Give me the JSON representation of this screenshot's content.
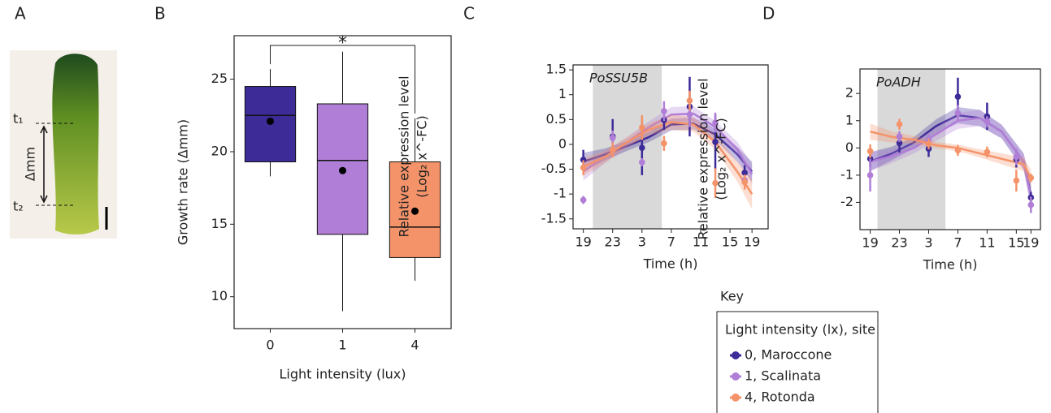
{
  "panel_a": {
    "panel": "A",
    "labels": [
      "t₁",
      "t₂",
      "Δmm"
    ]
  },
  "legend": {
    "heading": "Key",
    "title": "Light intensity (lx), site"
  },
  "chart_data": [
    {
      "type": "box",
      "panel": "B",
      "xlabel": "Light intensity (lux)",
      "ylabel": "Growth rate (Δmm)",
      "categories": [
        "0",
        "1",
        "4"
      ],
      "colors": [
        "#3d2b98",
        "#b07ed6",
        "#f4936a"
      ],
      "whisker_low": [
        18.3,
        9.0,
        11.1
      ],
      "q1": [
        19.3,
        14.3,
        12.7
      ],
      "median": [
        22.5,
        19.4,
        14.8
      ],
      "q3": [
        24.5,
        23.3,
        19.3
      ],
      "whisker_high": [
        25.7,
        26.9,
        22.3
      ],
      "mean": [
        22.1,
        18.7,
        15.9
      ],
      "annotation": "*",
      "ylim": [
        7.8,
        28
      ],
      "yticks": [
        10,
        15,
        20,
        25
      ]
    },
    {
      "type": "line",
      "panel": "C",
      "title": "PoSSU5B",
      "xlabel": "Time (h)",
      "ylabel": [
        "Relative expression level",
        "(Log₂ x^-FC)"
      ],
      "x": [
        0,
        4,
        8,
        11,
        14.5,
        18,
        22
      ],
      "fit_x": [
        0,
        3,
        6,
        9,
        12,
        15,
        18,
        21,
        23
      ],
      "shade": [
        1.3,
        10.7
      ],
      "xlim": [
        -1.4,
        25.2
      ],
      "ylim": [
        -1.7,
        1.6
      ],
      "xticks": [
        {
          "value": 0,
          "label": "19"
        },
        {
          "value": 4,
          "label": "23"
        },
        {
          "value": 8,
          "label": "3"
        },
        {
          "value": 12,
          "label": "7"
        },
        {
          "value": 16,
          "label": "11"
        },
        {
          "value": 20,
          "label": "15"
        },
        {
          "value": 23,
          "label": "19"
        }
      ],
      "yticks": [
        1.5,
        1,
        0.5,
        0,
        -0.5,
        -1,
        -1.5
      ],
      "series": [
        {
          "name": "0, Maroccone",
          "color": "#3d2b98",
          "values": [
            -0.31,
            0.16,
            -0.07,
            0.49,
            0.76,
            0.05,
            -0.57
          ],
          "errors": [
            0.2,
            0.35,
            0.55,
            0.2,
            0.6,
            0.55,
            0.15
          ],
          "fit": [
            -0.35,
            -0.2,
            -0.03,
            0.15,
            0.4,
            0.42,
            0.2,
            -0.2,
            -0.55
          ],
          "band": [
            0.18,
            0.12,
            0.1,
            0.1,
            0.12,
            0.12,
            0.12,
            0.15,
            0.2
          ]
        },
        {
          "name": "1, Scalinata",
          "color": "#b07ed6",
          "values": [
            -1.12,
            0.13,
            -0.36,
            0.67,
            0.6,
            0.44,
            -0.72
          ],
          "errors": [
            0.08,
            0.15,
            0.08,
            0.2,
            0.25,
            0.2,
            0.1
          ],
          "fit": [
            -0.55,
            -0.25,
            0.05,
            0.35,
            0.6,
            0.62,
            0.35,
            -0.1,
            -0.6
          ],
          "band": [
            0.18,
            0.12,
            0.1,
            0.12,
            0.15,
            0.15,
            0.12,
            0.15,
            0.2
          ]
        },
        {
          "name": "4, Rotonda",
          "color": "#f4936a",
          "values": [
            -0.47,
            -0.11,
            0.34,
            0.02,
            0.88,
            -0.78,
            -0.76
          ],
          "errors": [
            0.15,
            0.15,
            0.25,
            0.15,
            0.2,
            0.3,
            0.15
          ],
          "fit": [
            -0.45,
            -0.25,
            0.05,
            0.3,
            0.45,
            0.4,
            0.05,
            -0.55,
            -1.0
          ],
          "band": [
            0.18,
            0.12,
            0.1,
            0.12,
            0.15,
            0.15,
            0.15,
            0.2,
            0.3
          ]
        }
      ]
    },
    {
      "type": "line",
      "panel": "D",
      "title": "PoADH",
      "xlabel": "Time (h)",
      "ylabel": [
        "Relative expression level",
        "(Log₂ x^-FC)"
      ],
      "x": [
        0,
        4,
        8,
        12,
        16,
        20,
        22
      ],
      "fit_x": [
        0,
        3,
        6,
        9,
        12,
        15,
        18,
        21,
        22
      ],
      "shade": [
        1.0,
        10.3
      ],
      "xlim": [
        -1.4,
        23.3
      ],
      "ylim": [
        -3.0,
        2.9
      ],
      "xticks": [
        {
          "value": 0,
          "label": "19"
        },
        {
          "value": 4,
          "label": "23"
        },
        {
          "value": 8,
          "label": "3"
        },
        {
          "value": 12,
          "label": "7"
        },
        {
          "value": 16,
          "label": "11"
        },
        {
          "value": 20,
          "label": "15"
        },
        {
          "value": 22,
          "label": "19"
        }
      ],
      "yticks": [
        2,
        1,
        0,
        -1,
        -2
      ],
      "series": [
        {
          "name": "0, Maroccone",
          "color": "#3d2b98",
          "values": [
            -0.4,
            0.18,
            -0.03,
            1.88,
            1.16,
            -0.42,
            -1.82
          ],
          "errors": [
            0.3,
            0.35,
            0.3,
            0.7,
            0.5,
            0.3,
            0.2
          ],
          "fit": [
            -0.5,
            -0.2,
            0.2,
            0.8,
            1.2,
            1.1,
            0.6,
            -0.5,
            -1.7
          ],
          "band": [
            0.35,
            0.25,
            0.2,
            0.25,
            0.3,
            0.3,
            0.25,
            0.3,
            0.4
          ]
        },
        {
          "name": "1, Scalinata",
          "color": "#b07ed6",
          "values": [
            -1.0,
            0.42,
            0.3,
            1.28,
            0.96,
            -0.33,
            -2.09
          ],
          "errors": [
            0.6,
            0.2,
            0.2,
            0.3,
            0.2,
            0.3,
            0.3
          ],
          "fit": [
            -0.5,
            -0.3,
            0.0,
            0.5,
            1.0,
            1.1,
            0.6,
            -0.5,
            -1.8
          ],
          "band": [
            0.35,
            0.25,
            0.2,
            0.25,
            0.3,
            0.3,
            0.25,
            0.3,
            0.4
          ]
        },
        {
          "name": "4, Rotonda",
          "color": "#f4936a",
          "values": [
            -0.12,
            0.87,
            0.15,
            -0.09,
            -0.15,
            -1.2,
            -1.1
          ],
          "errors": [
            0.25,
            0.2,
            0.2,
            0.2,
            0.2,
            0.4,
            0.15
          ],
          "fit": [
            0.6,
            0.4,
            0.3,
            0.1,
            0.0,
            -0.2,
            -0.4,
            -0.6,
            -1.1
          ],
          "band": [
            0.3,
            0.2,
            0.15,
            0.12,
            0.12,
            0.15,
            0.2,
            0.25,
            0.3
          ]
        }
      ]
    }
  ]
}
